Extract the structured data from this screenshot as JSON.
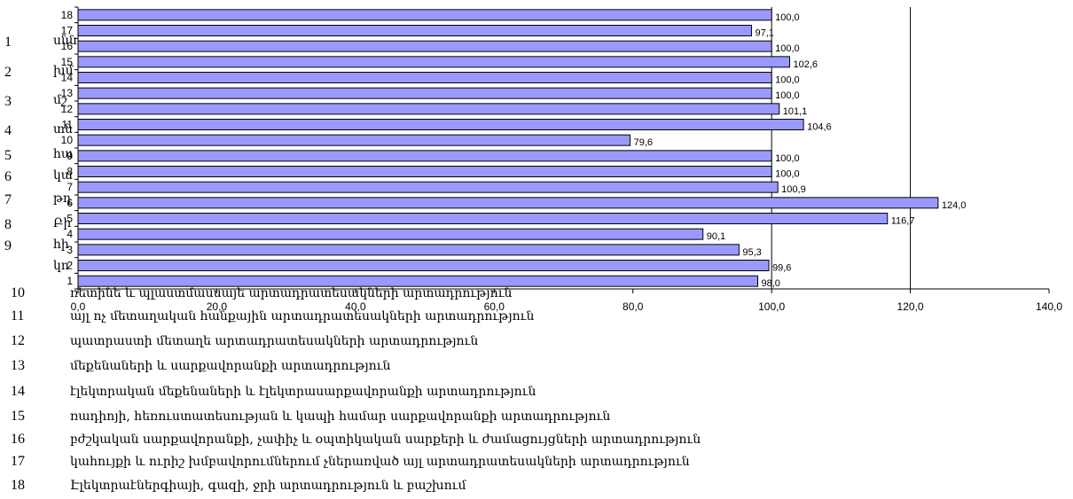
{
  "chart_data": {
    "type": "bar",
    "orientation": "horizontal",
    "categories": [
      "1",
      "2",
      "3",
      "4",
      "5",
      "6",
      "7",
      "8",
      "9",
      "10",
      "11",
      "12",
      "13",
      "14",
      "15",
      "16",
      "17",
      "18"
    ],
    "values": [
      98.0,
      99.6,
      95.3,
      90.1,
      116.7,
      124.0,
      100.9,
      100.0,
      100.0,
      79.6,
      104.6,
      101.1,
      100.0,
      100.0,
      102.6,
      100.0,
      97.1,
      100.0
    ],
    "value_labels": [
      "98,0",
      "99,6",
      "95,3",
      "90,1",
      "116,7",
      "124,0",
      "100,9",
      "100,0",
      "100,0",
      "79,6",
      "104,6",
      "101,1",
      "100,0",
      "100,0",
      "102,6",
      "100,0",
      "97,1",
      "100,0"
    ],
    "x_ticks": [
      "0,0",
      "20,0",
      "40,0",
      "60,0",
      "80,0",
      "100,0",
      "120,0",
      "140,0"
    ],
    "xlim": [
      0,
      140
    ],
    "gridlines": "vertical at 100 and 120",
    "bar_color": "#9999ff",
    "bar_edge_color": "#000000",
    "legend": [
      {
        "num": "10",
        "text": "ռետինե և պլաստմասսայե արտադրատեսակների արտադրություն"
      },
      {
        "num": "11",
        "text": "այլ ոչ մետաղական հանքային արտադրատեսակների արտադրություն"
      },
      {
        "num": "12",
        "text": "պատրաստի մետաղե արտադրատեսակների արտադրություն"
      },
      {
        "num": "13",
        "text": "մեքենաների և սարքավորանքի արտադրություն"
      },
      {
        "num": "14",
        "text": "էլեկտրական մեքենաների և էլեկտրասարքավորանքի արտադրություն"
      },
      {
        "num": "15",
        "text": "ռադիոյի, հեռուստատեսության և կապի համար սարքավորանքի արտադրություն"
      },
      {
        "num": "16",
        "text": "բժշկական սարքավորանքի, չափիչ և օպտիկական սարքերի և ժամացույցների արտադրություն"
      },
      {
        "num": "17",
        "text": "կահույքի և ուրիշ խմբավորումներում չներառված այլ արտադրատեսակների արտադրություն"
      },
      {
        "num": "18",
        "text": "Էլեկտրաէներգիայի, գազի, ջրի արտադրություն և բաշխում"
      }
    ],
    "truncated_left_labels": [
      {
        "num": "1",
        "text": "սնն"
      },
      {
        "num": "2",
        "text": "խմ"
      },
      {
        "num": "3",
        "text": "մշ"
      },
      {
        "num": "4",
        "text": "տն"
      },
      {
        "num": "5",
        "text": "հա"
      },
      {
        "num": "6",
        "text": "կա"
      },
      {
        "num": "7",
        "text": "թղ"
      },
      {
        "num": "8",
        "text": "Բի"
      },
      {
        "num": "9",
        "text": "հի"
      },
      {
        "num": "",
        "text": "կո"
      }
    ]
  }
}
